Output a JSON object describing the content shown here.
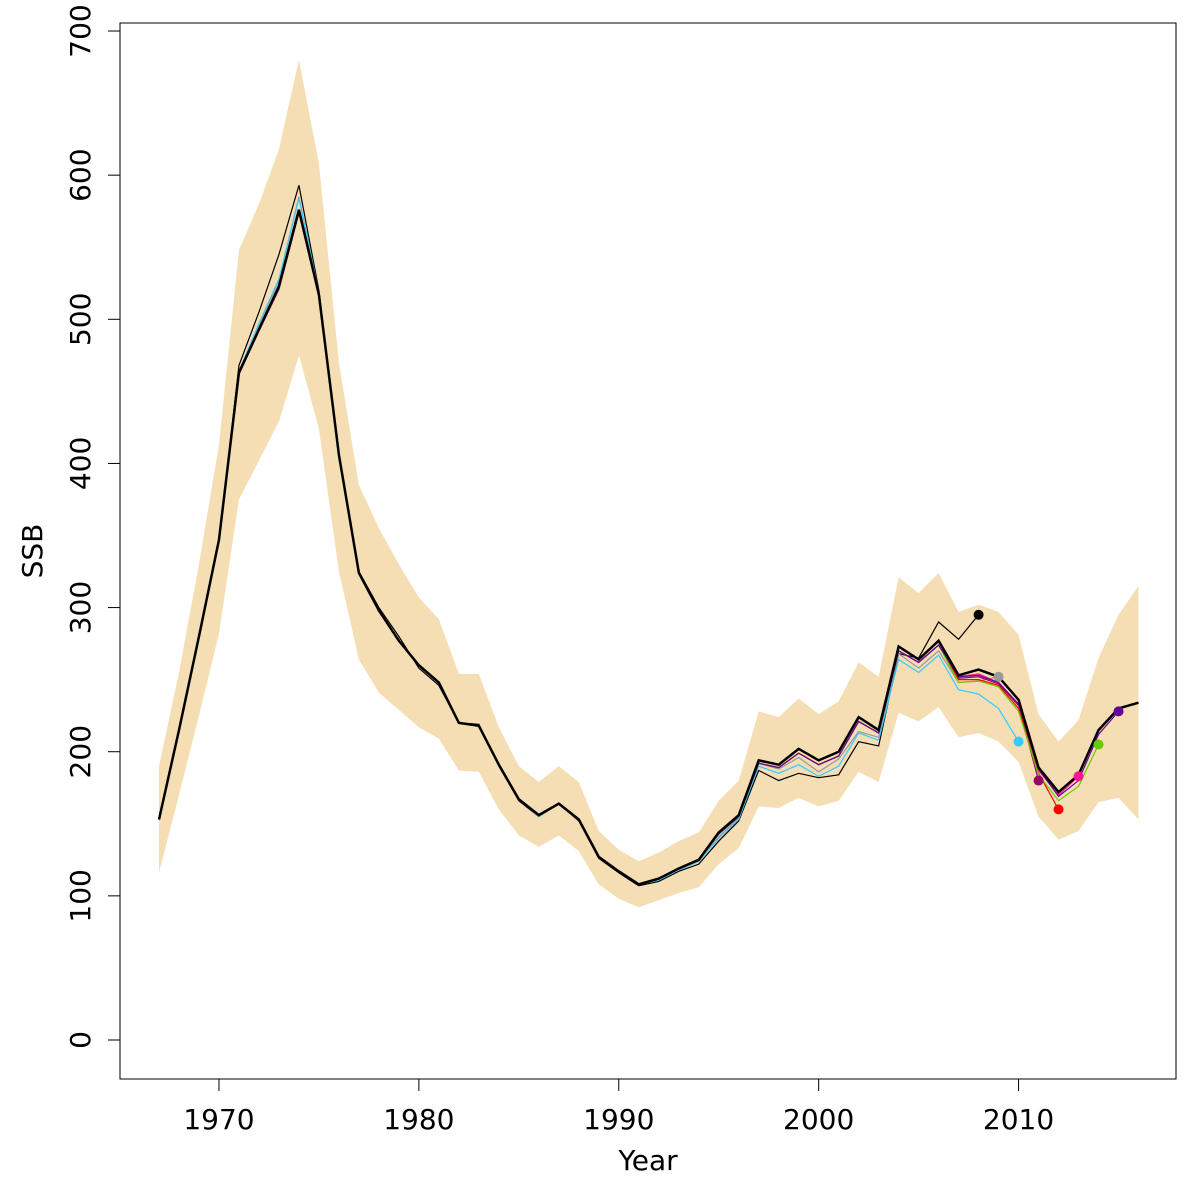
{
  "chart_data": {
    "type": "line",
    "title": "",
    "xlabel": "Year",
    "ylabel": "SSB",
    "xlim": [
      1965,
      2018
    ],
    "ylim": [
      -27,
      706
    ],
    "xticks": [
      1970,
      1980,
      1990,
      2000,
      2010
    ],
    "yticks": [
      0,
      100,
      200,
      300,
      400,
      500,
      600,
      700
    ],
    "grid": false,
    "band": {
      "color": "#f5deb3",
      "start_year": 1967,
      "upper": [
        190,
        255,
        330,
        413,
        548,
        580,
        618,
        680,
        608,
        470,
        385,
        355,
        330,
        307,
        292,
        254,
        254,
        217,
        190,
        179,
        190,
        179,
        145,
        132,
        124,
        130,
        138,
        144,
        166,
        180,
        228,
        224,
        237,
        226,
        235,
        262,
        252,
        321,
        310,
        324,
        297,
        302,
        297,
        281,
        226,
        207,
        222,
        265,
        295,
        315
      ],
      "lower": [
        116,
        170,
        225,
        282,
        375,
        402,
        429,
        475,
        424,
        325,
        264,
        241,
        229,
        217,
        209,
        187,
        186,
        160,
        142,
        134,
        142,
        131,
        108,
        98,
        92,
        97,
        102,
        106,
        122,
        133,
        162,
        161,
        168,
        162,
        166,
        186,
        179,
        227,
        221,
        231,
        210,
        213,
        207,
        193,
        155,
        139,
        145,
        165,
        168,
        153
      ]
    },
    "main": {
      "color": "#000000",
      "start_year": 1967,
      "values": [
        153,
        215,
        280,
        347,
        463,
        493,
        523,
        576,
        517,
        406,
        324,
        298,
        277,
        260,
        248,
        220,
        218,
        191,
        167,
        156,
        164,
        153,
        127,
        117,
        108,
        112,
        119,
        125,
        144,
        156,
        194,
        191,
        202,
        194,
        200,
        224,
        215,
        273,
        264,
        277,
        253,
        257,
        252,
        236,
        189,
        172,
        184,
        215,
        230,
        234
      ]
    },
    "series": [
      {
        "end_year": 2008,
        "color": "#000000",
        "values": [
          153,
          214,
          279,
          346,
          468,
          505,
          545,
          593,
          520,
          404,
          325,
          300,
          280,
          258,
          246,
          220,
          219,
          190,
          166,
          155,
          164,
          152,
          126,
          116,
          107,
          110,
          117,
          122,
          138,
          152,
          187,
          180,
          185,
          182,
          184,
          207,
          204,
          268,
          265,
          290,
          278,
          295
        ]
      },
      {
        "end_year": 2009,
        "color": "#999999",
        "values": [
          153,
          215,
          280,
          347,
          464,
          496,
          527,
          585,
          518,
          405,
          324,
          298,
          277,
          260,
          248,
          220,
          218,
          191,
          167,
          155,
          164,
          153,
          127,
          117,
          108,
          111,
          118,
          124,
          141,
          154,
          192,
          188,
          196,
          186,
          195,
          214,
          210,
          268,
          258,
          270,
          248,
          249,
          252
        ]
      },
      {
        "end_year": 2010,
        "color": "#33ccff",
        "values": [
          153,
          215,
          280,
          347,
          464,
          497,
          528,
          584,
          518,
          405,
          324,
          298,
          277,
          260,
          248,
          220,
          218,
          191,
          167,
          155,
          164,
          153,
          127,
          117,
          108,
          111,
          118,
          124,
          140,
          153,
          190,
          185,
          191,
          183,
          190,
          213,
          208,
          264,
          255,
          267,
          243,
          240,
          230,
          207
        ]
      },
      {
        "end_year": 2011,
        "color": "#990066",
        "values": [
          153,
          215,
          280,
          347,
          462,
          492,
          521,
          574,
          516,
          405,
          324,
          298,
          277,
          260,
          248,
          220,
          218,
          191,
          167,
          156,
          164,
          153,
          127,
          117,
          108,
          112,
          119,
          125,
          143,
          155,
          192,
          189,
          199,
          191,
          197,
          221,
          213,
          270,
          262,
          274,
          251,
          252,
          247,
          232,
          180
        ]
      },
      {
        "end_year": 2012,
        "color": "#ff0000",
        "values": [
          153,
          215,
          280,
          347,
          462,
          492,
          521,
          574,
          516,
          405,
          324,
          298,
          277,
          260,
          248,
          220,
          218,
          191,
          167,
          156,
          164,
          153,
          127,
          117,
          108,
          112,
          119,
          125,
          143,
          155,
          192,
          189,
          199,
          191,
          197,
          221,
          213,
          270,
          262,
          274,
          250,
          250,
          246,
          230,
          185,
          160
        ]
      },
      {
        "end_year": 2013,
        "color": "#ff1493",
        "values": [
          153,
          215,
          280,
          347,
          462,
          492,
          521,
          574,
          516,
          405,
          324,
          298,
          277,
          260,
          248,
          220,
          218,
          191,
          167,
          156,
          164,
          153,
          127,
          117,
          108,
          112,
          119,
          125,
          143,
          155,
          192,
          189,
          199,
          191,
          197,
          221,
          213,
          270,
          262,
          274,
          252,
          254,
          248,
          233,
          187,
          170,
          183
        ]
      },
      {
        "end_year": 2014,
        "color": "#66cc00",
        "values": [
          153,
          215,
          280,
          347,
          462,
          492,
          521,
          574,
          516,
          405,
          324,
          298,
          277,
          260,
          248,
          220,
          218,
          191,
          167,
          156,
          164,
          153,
          127,
          117,
          108,
          112,
          119,
          125,
          143,
          155,
          192,
          189,
          199,
          191,
          197,
          221,
          213,
          270,
          262,
          274,
          248,
          249,
          245,
          228,
          184,
          166,
          176,
          205
        ]
      },
      {
        "end_year": 2015,
        "color": "#660099",
        "values": [
          153,
          215,
          280,
          347,
          462,
          492,
          521,
          574,
          516,
          405,
          324,
          298,
          277,
          260,
          248,
          220,
          218,
          191,
          167,
          156,
          164,
          153,
          127,
          117,
          108,
          112,
          119,
          125,
          143,
          155,
          192,
          189,
          199,
          191,
          197,
          221,
          213,
          270,
          262,
          274,
          252,
          253,
          248,
          233,
          188,
          169,
          180,
          212,
          228
        ]
      }
    ]
  }
}
